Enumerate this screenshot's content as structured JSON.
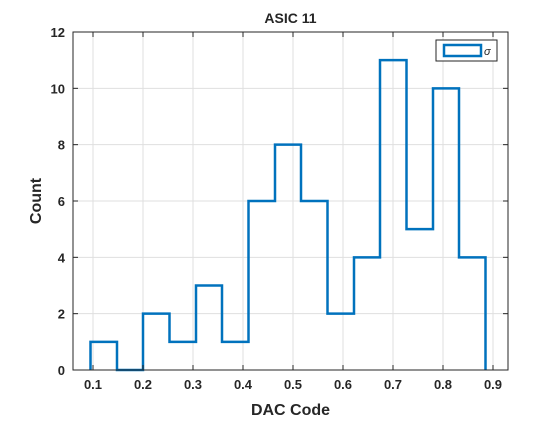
{
  "chart_data": {
    "type": "histogram",
    "title": "ASIC 11",
    "xlabel": "DAC Code",
    "ylabel": "Count",
    "xlim": [
      0.06,
      0.93
    ],
    "ylim": [
      0,
      12
    ],
    "xticks": [
      "0.1",
      "0.2",
      "0.3",
      "0.4",
      "0.5",
      "0.6",
      "0.7",
      "0.8",
      "0.9"
    ],
    "yticks": [
      "0",
      "2",
      "4",
      "6",
      "8",
      "10",
      "12"
    ],
    "grid": true,
    "legend": {
      "position": "top-right",
      "entries": [
        "σ"
      ]
    },
    "series": [
      {
        "name": "σ",
        "color": "#0072BD",
        "bin_edges": [
          0.095,
          0.148,
          0.2,
          0.253,
          0.306,
          0.358,
          0.411,
          0.464,
          0.516,
          0.569,
          0.622,
          0.674,
          0.727,
          0.78,
          0.832,
          0.885
        ],
        "counts": [
          1,
          0,
          2,
          1,
          3,
          1,
          6,
          8,
          6,
          2,
          4,
          11,
          5,
          10,
          4
        ]
      }
    ]
  }
}
